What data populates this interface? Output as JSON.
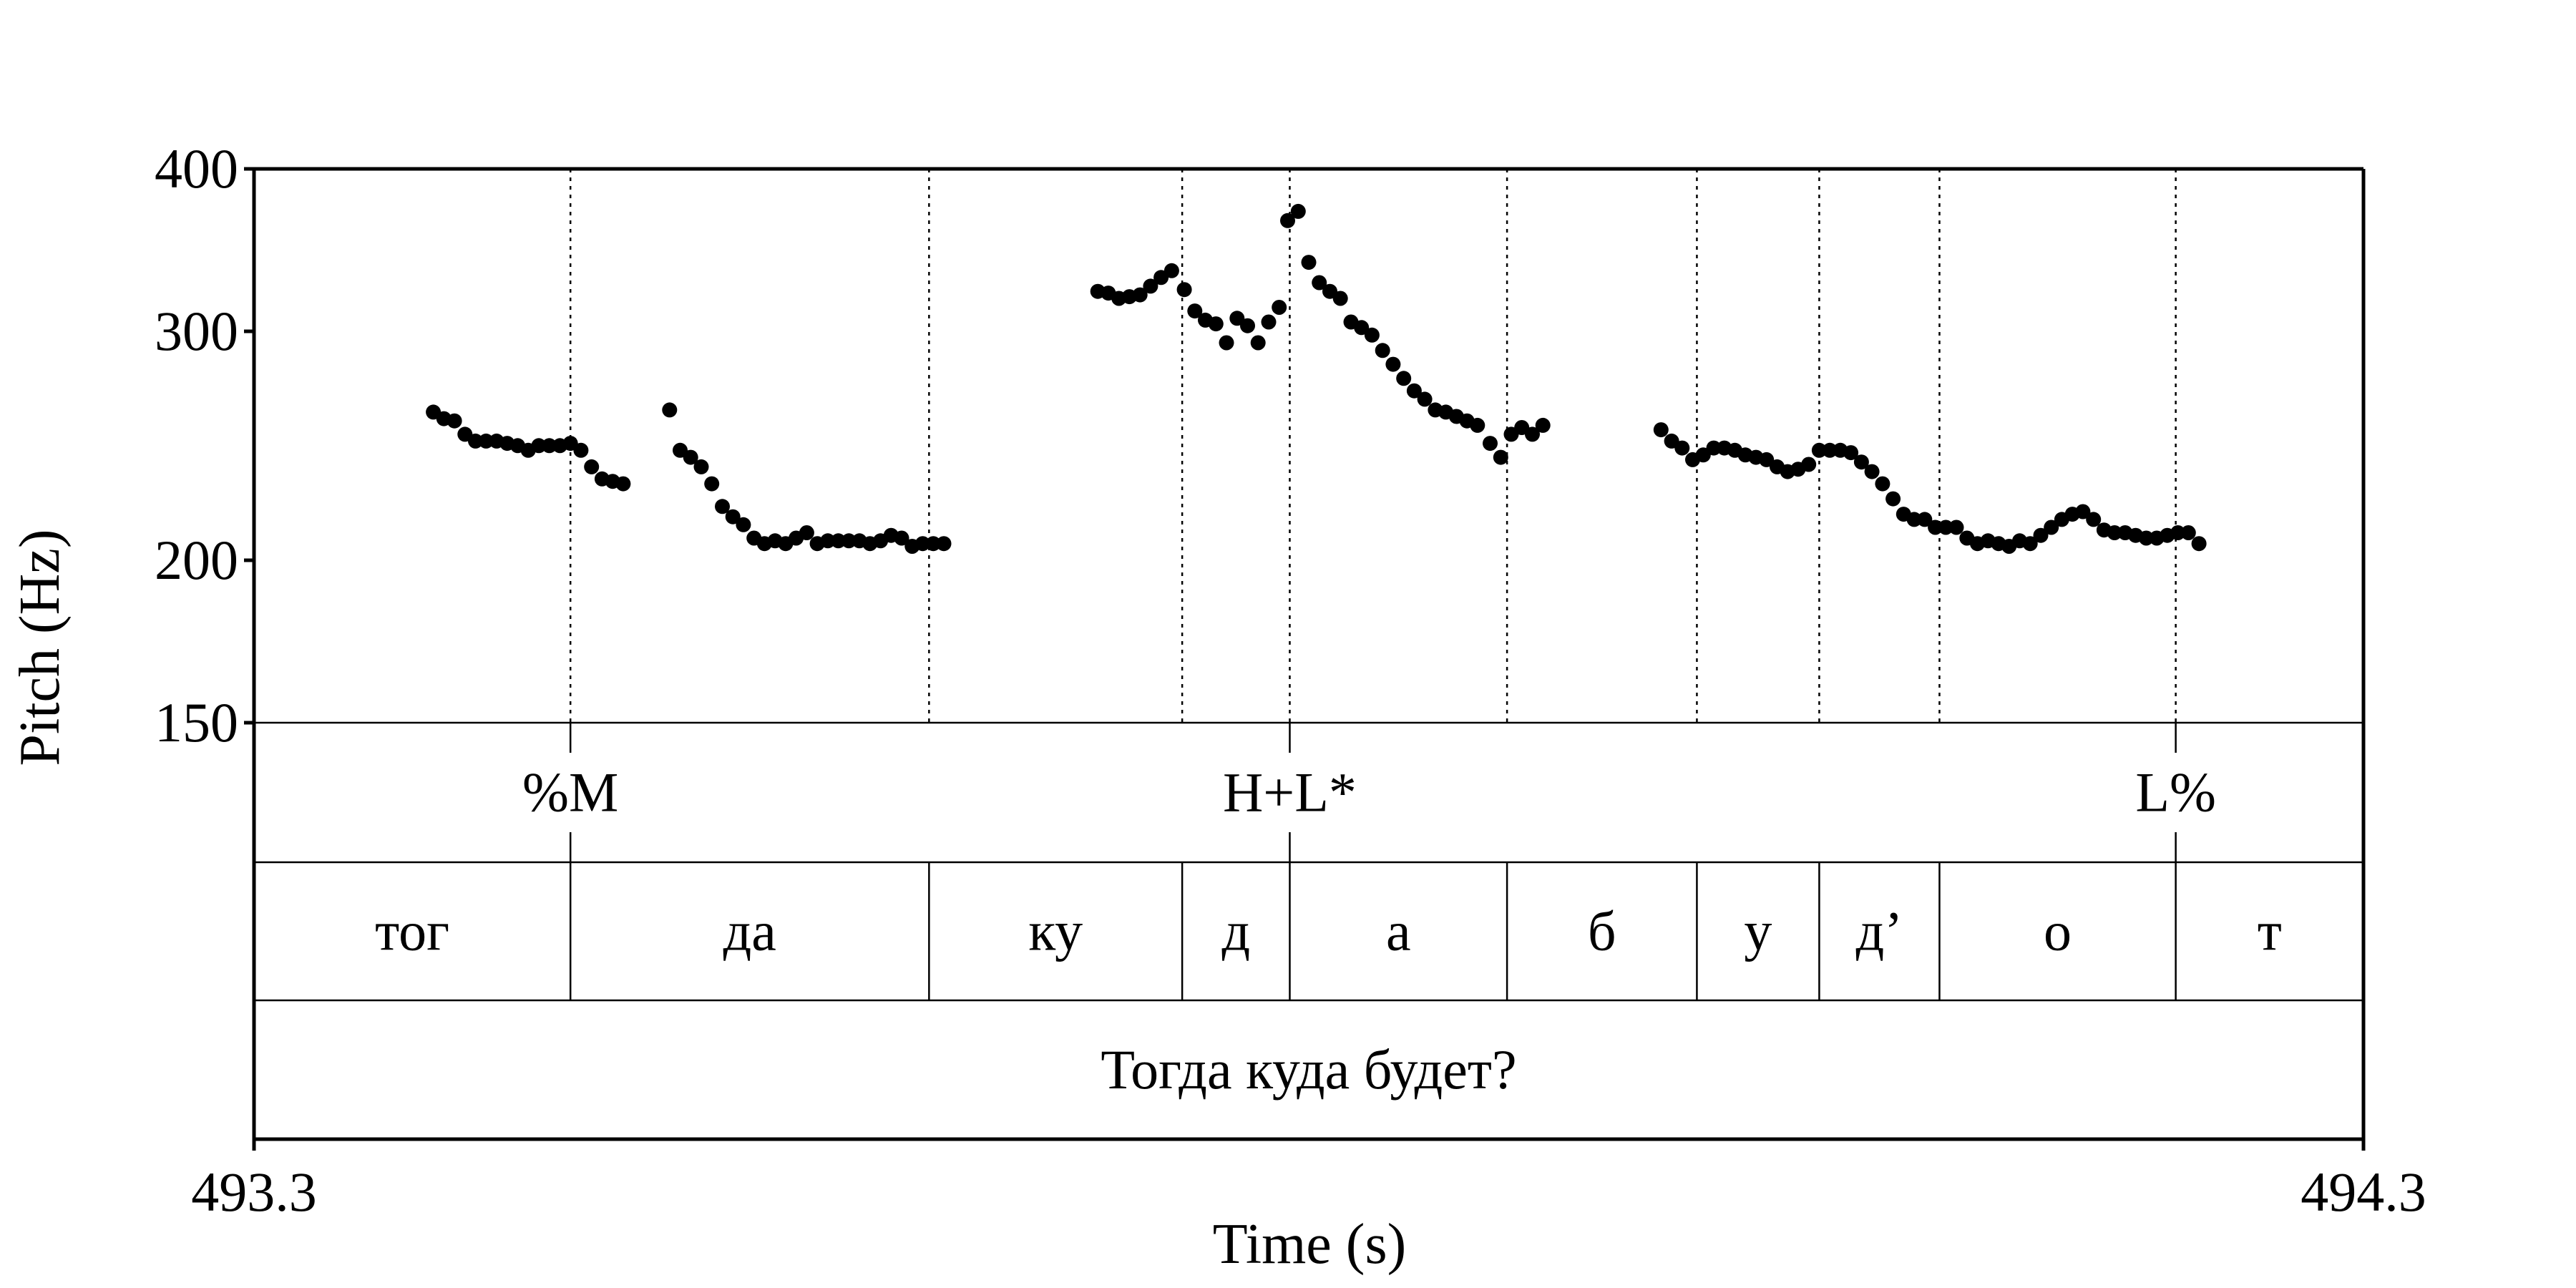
{
  "chart_data": {
    "type": "scatter",
    "xlabel": "Time (s)",
    "ylabel": "Pitch (Hz)",
    "xlim": [
      493.3,
      494.3
    ],
    "ylim": [
      150,
      400
    ],
    "y_scale": "log",
    "x_tick_labels": [
      "493.3",
      "494.3"
    ],
    "y_ticks": [
      150,
      200,
      300,
      400
    ],
    "y_tick_labels": [
      "150",
      "200",
      "300",
      "400"
    ],
    "grid": false,
    "series": [
      {
        "points": [
          [
            493.385,
            260
          ],
          [
            493.39,
            257
          ],
          [
            493.395,
            256
          ],
          [
            493.4,
            250
          ],
          [
            493.405,
            247
          ],
          [
            493.41,
            247
          ],
          [
            493.415,
            247
          ],
          [
            493.42,
            246
          ],
          [
            493.425,
            245
          ],
          [
            493.43,
            243
          ],
          [
            493.435,
            245
          ],
          [
            493.44,
            245
          ],
          [
            493.445,
            245
          ],
          [
            493.45,
            246
          ],
          [
            493.455,
            243
          ],
          [
            493.46,
            236
          ],
          [
            493.465,
            231
          ],
          [
            493.47,
            230
          ],
          [
            493.475,
            229
          ],
          [
            493.497,
            261
          ],
          [
            493.502,
            243
          ],
          [
            493.507,
            240
          ],
          [
            493.512,
            236
          ],
          [
            493.517,
            229
          ],
          [
            493.522,
            220
          ],
          [
            493.527,
            216
          ],
          [
            493.532,
            213
          ],
          [
            493.537,
            208
          ],
          [
            493.542,
            206
          ],
          [
            493.547,
            207
          ],
          [
            493.552,
            206
          ],
          [
            493.557,
            208
          ],
          [
            493.562,
            210
          ],
          [
            493.567,
            206
          ],
          [
            493.572,
            207
          ],
          [
            493.577,
            207
          ],
          [
            493.582,
            207
          ],
          [
            493.587,
            207
          ],
          [
            493.592,
            206
          ],
          [
            493.597,
            207
          ],
          [
            493.602,
            209
          ],
          [
            493.607,
            208
          ],
          [
            493.612,
            205
          ],
          [
            493.617,
            206
          ],
          [
            493.622,
            206
          ],
          [
            493.627,
            206
          ],
          [
            493.7,
            322
          ],
          [
            493.705,
            321
          ],
          [
            493.71,
            318
          ],
          [
            493.715,
            319
          ],
          [
            493.72,
            320
          ],
          [
            493.725,
            325
          ],
          [
            493.73,
            330
          ],
          [
            493.735,
            334
          ],
          [
            493.741,
            323
          ],
          [
            493.746,
            311
          ],
          [
            493.751,
            306
          ],
          [
            493.756,
            304
          ],
          [
            493.761,
            294
          ],
          [
            493.766,
            307
          ],
          [
            493.771,
            303
          ],
          [
            493.776,
            294
          ],
          [
            493.781,
            305
          ],
          [
            493.786,
            313
          ],
          [
            493.79,
            365
          ],
          [
            493.795,
            371
          ],
          [
            493.8,
            339
          ],
          [
            493.805,
            327
          ],
          [
            493.81,
            322
          ],
          [
            493.815,
            318
          ],
          [
            493.82,
            305
          ],
          [
            493.825,
            302
          ],
          [
            493.83,
            298
          ],
          [
            493.835,
            290
          ],
          [
            493.84,
            283
          ],
          [
            493.845,
            276
          ],
          [
            493.85,
            270
          ],
          [
            493.855,
            266
          ],
          [
            493.86,
            261
          ],
          [
            493.865,
            260
          ],
          [
            493.87,
            258
          ],
          [
            493.875,
            256
          ],
          [
            493.88,
            254
          ],
          [
            493.886,
            246
          ],
          [
            493.891,
            240
          ],
          [
            493.896,
            250
          ],
          [
            493.901,
            253
          ],
          [
            493.906,
            250
          ],
          [
            493.911,
            254
          ],
          [
            493.967,
            252
          ],
          [
            493.972,
            247
          ],
          [
            493.977,
            244
          ],
          [
            493.982,
            239
          ],
          [
            493.987,
            241
          ],
          [
            493.992,
            244
          ],
          [
            493.997,
            244
          ],
          [
            494.002,
            243
          ],
          [
            494.007,
            241
          ],
          [
            494.012,
            240
          ],
          [
            494.017,
            239
          ],
          [
            494.022,
            236
          ],
          [
            494.027,
            234
          ],
          [
            494.032,
            235
          ],
          [
            494.037,
            237
          ],
          [
            494.042,
            243
          ],
          [
            494.047,
            243
          ],
          [
            494.052,
            243
          ],
          [
            494.057,
            242
          ],
          [
            494.062,
            238
          ],
          [
            494.067,
            234
          ],
          [
            494.072,
            229
          ],
          [
            494.077,
            223
          ],
          [
            494.082,
            217
          ],
          [
            494.087,
            215
          ],
          [
            494.092,
            215
          ],
          [
            494.097,
            212
          ],
          [
            494.102,
            212
          ],
          [
            494.107,
            212
          ],
          [
            494.112,
            208
          ],
          [
            494.117,
            206
          ],
          [
            494.122,
            207
          ],
          [
            494.127,
            206
          ],
          [
            494.132,
            205
          ],
          [
            494.137,
            207
          ],
          [
            494.142,
            206
          ],
          [
            494.147,
            209
          ],
          [
            494.152,
            212
          ],
          [
            494.157,
            215
          ],
          [
            494.162,
            217
          ],
          [
            494.167,
            218
          ],
          [
            494.172,
            215
          ],
          [
            494.177,
            211
          ],
          [
            494.182,
            210
          ],
          [
            494.187,
            210
          ],
          [
            494.192,
            209
          ],
          [
            494.197,
            208
          ],
          [
            494.202,
            208
          ],
          [
            494.207,
            209
          ],
          [
            494.212,
            210
          ],
          [
            494.217,
            210
          ],
          [
            494.222,
            206
          ]
        ]
      }
    ],
    "boundaries": [
      493.45,
      493.62,
      493.74,
      493.791,
      493.894,
      493.984,
      494.042,
      494.099,
      494.211
    ],
    "tone_tier": [
      {
        "label": "%M",
        "time": 493.45
      },
      {
        "label": "H+L*",
        "time": 493.791
      },
      {
        "label": "L%",
        "time": 494.211
      }
    ],
    "segment_tier": [
      {
        "label": "тог",
        "start": 493.3,
        "end": 493.45
      },
      {
        "label": "да",
        "start": 493.45,
        "end": 493.62
      },
      {
        "label": "ку",
        "start": 493.62,
        "end": 493.74
      },
      {
        "label": "д",
        "start": 493.74,
        "end": 493.791
      },
      {
        "label": "а",
        "start": 493.791,
        "end": 493.894
      },
      {
        "label": "б",
        "start": 493.894,
        "end": 493.984
      },
      {
        "label": "у",
        "start": 493.984,
        "end": 494.042
      },
      {
        "label": "д’",
        "start": 494.042,
        "end": 494.099
      },
      {
        "label": "о",
        "start": 494.099,
        "end": 494.211
      },
      {
        "label": "т",
        "start": 494.211,
        "end": 494.3
      }
    ],
    "utterance_tier": {
      "label": "Тогда куда будет?",
      "start": 493.3,
      "end": 494.3
    }
  }
}
